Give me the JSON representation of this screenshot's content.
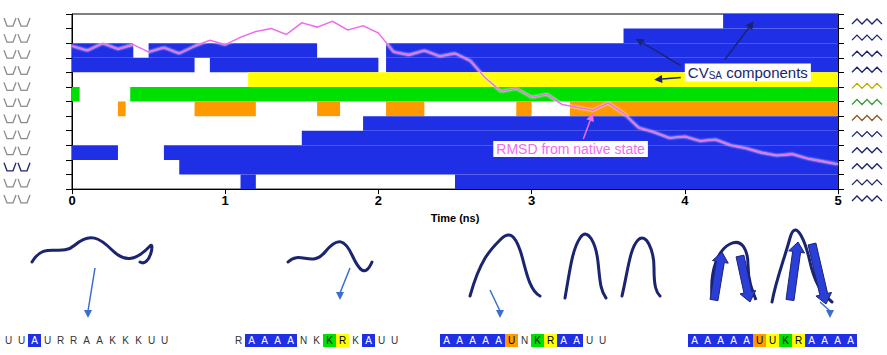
{
  "chart_data": {
    "type": "timeline",
    "xlabel": "Time (ns)",
    "xlim": [
      0,
      5
    ],
    "xticks": [
      0,
      1,
      2,
      3,
      4,
      5
    ],
    "ylim": [
      0,
      12
    ],
    "yticks": [
      0,
      1,
      2,
      3,
      4,
      5,
      6,
      7,
      8,
      9,
      10,
      11,
      12
    ],
    "tick_labels": "x",
    "grid": false,
    "rows": [
      {
        "color": "#1f2fe6",
        "intervals": [
          [
            4.25,
            5
          ]
        ]
      },
      {
        "color": "#1f2fe6",
        "intervals": [
          [
            3.6,
            5
          ]
        ]
      },
      {
        "color": "#1f2fe6",
        "intervals": [
          [
            0,
            0.4
          ],
          [
            0.5,
            1.6
          ],
          [
            2.05,
            5
          ]
        ]
      },
      {
        "color": "#1f2fe6",
        "intervals": [
          [
            0,
            0.8
          ],
          [
            0.9,
            2.0
          ],
          [
            2.05,
            5
          ]
        ]
      },
      {
        "color": "#ffff00",
        "intervals": [
          [
            1.15,
            5
          ]
        ]
      },
      {
        "color": "#00e000",
        "intervals": [
          [
            0,
            0.05
          ],
          [
            0.38,
            5
          ]
        ]
      },
      {
        "color": "#ff9900",
        "intervals": [
          [
            0.3,
            0.35
          ],
          [
            0.8,
            1.2
          ],
          [
            1.6,
            1.75
          ],
          [
            2.05,
            2.3
          ],
          [
            2.9,
            3.0
          ],
          [
            3.25,
            5
          ]
        ]
      },
      {
        "color": "#1f2fe6",
        "intervals": [
          [
            1.9,
            5
          ]
        ]
      },
      {
        "color": "#1f2fe6",
        "intervals": [
          [
            1.5,
            5
          ]
        ]
      },
      {
        "color": "#1f2fe6",
        "intervals": [
          [
            0,
            0.3
          ],
          [
            0.6,
            5
          ]
        ]
      },
      {
        "color": "#1f2fe6",
        "intervals": [
          [
            0.7,
            5
          ]
        ]
      },
      {
        "color": "#1f2fe6",
        "intervals": [
          [
            1.1,
            1.2
          ],
          [
            2.5,
            5
          ]
        ]
      }
    ],
    "series": [
      {
        "name": "RMSD from native state",
        "type": "line",
        "color": "#f06cf0",
        "x": [
          0,
          0.1,
          0.2,
          0.3,
          0.4,
          0.5,
          0.6,
          0.7,
          0.8,
          0.9,
          1.0,
          1.1,
          1.2,
          1.3,
          1.4,
          1.5,
          1.6,
          1.7,
          1.8,
          1.9,
          2.0,
          2.1,
          2.2,
          2.3,
          2.4,
          2.5,
          2.6,
          2.7,
          2.8,
          2.9,
          3.0,
          3.1,
          3.2,
          3.3,
          3.4,
          3.5,
          3.6,
          3.7,
          3.8,
          3.9,
          4.0,
          4.1,
          4.2,
          4.3,
          4.4,
          4.5,
          4.6,
          4.7,
          4.8,
          4.9,
          5.0
        ],
        "values": [
          9.8,
          9.5,
          10.0,
          9.6,
          9.9,
          9.4,
          9.7,
          9.3,
          9.8,
          10.2,
          9.9,
          10.4,
          10.8,
          11.0,
          10.6,
          11.4,
          11.1,
          11.5,
          10.9,
          11.2,
          10.7,
          9.4,
          9.2,
          9.5,
          9.1,
          9.3,
          8.8,
          7.6,
          6.7,
          6.9,
          6.3,
          6.5,
          5.8,
          5.6,
          5.4,
          5.9,
          5.2,
          4.2,
          3.9,
          3.5,
          3.6,
          3.3,
          3.4,
          3.0,
          2.8,
          2.5,
          2.3,
          2.4,
          2.1,
          1.9,
          1.7
        ]
      }
    ],
    "annotations": [
      {
        "text": "CV",
        "subscript": "SA",
        "after": " components"
      }
    ]
  },
  "sequences": [
    {
      "letters": [
        "U",
        "U",
        "A",
        "U",
        "R",
        "R",
        "A",
        "A",
        "K",
        "K",
        "K",
        "U",
        "U"
      ],
      "colors": [
        null,
        null,
        "#1f2fe6",
        null,
        null,
        null,
        null,
        null,
        null,
        null,
        null,
        null,
        null
      ]
    },
    {
      "letters": [
        "R",
        "A",
        "A",
        "A",
        "A",
        "N",
        "K",
        "K",
        "R",
        "K",
        "A",
        "U",
        "U"
      ],
      "colors": [
        null,
        "#1f2fe6",
        "#1f2fe6",
        "#1f2fe6",
        "#1f2fe6",
        null,
        null,
        "#00e000",
        "#ffff00",
        null,
        "#1f2fe6",
        null,
        null
      ]
    },
    {
      "letters": [
        "A",
        "A",
        "A",
        "A",
        "A",
        "U",
        "N",
        "K",
        "R",
        "A",
        "A",
        "U",
        "U"
      ],
      "colors": [
        "#1f2fe6",
        "#1f2fe6",
        "#1f2fe6",
        "#1f2fe6",
        "#1f2fe6",
        "#ff9900",
        null,
        "#00e000",
        "#ffff00",
        "#1f2fe6",
        "#1f2fe6",
        null,
        null
      ]
    },
    {
      "letters": [
        "A",
        "A",
        "A",
        "A",
        "A",
        "U",
        "U",
        "K",
        "R",
        "A",
        "A",
        "A",
        "A"
      ],
      "colors": [
        "#1f2fe6",
        "#1f2fe6",
        "#1f2fe6",
        "#1f2fe6",
        "#1f2fe6",
        "#ff9900",
        "#ffff00",
        "#00e000",
        "#ffff00",
        "#1f2fe6",
        "#1f2fe6",
        "#1f2fe6",
        "#1f2fe6"
      ]
    }
  ]
}
